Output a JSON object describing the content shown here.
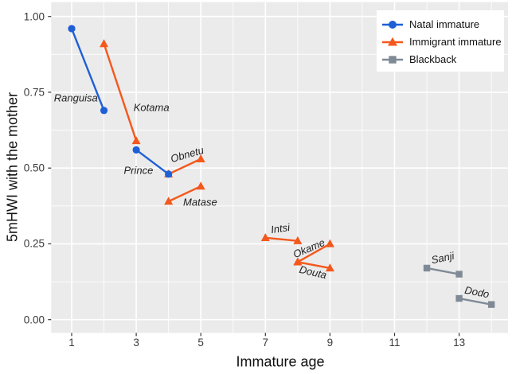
{
  "chart_data": {
    "type": "line",
    "title": "",
    "xlabel": "Immature age",
    "ylabel": "5mHWI with the mother",
    "xlim": [
      0.35,
      14.65
    ],
    "ylim": [
      -0.04,
      1.04
    ],
    "x_ticks": [
      1,
      3,
      5,
      7,
      9,
      11,
      13
    ],
    "x_tick_labels": [
      "1",
      "3",
      "5",
      "7",
      "9",
      "11",
      "13"
    ],
    "y_ticks": [
      0.0,
      0.25,
      0.5,
      0.75,
      1.0
    ],
    "y_tick_labels": [
      "0.00",
      "0.25",
      "0.50",
      "0.75",
      "1.00"
    ],
    "x_minor": [
      2,
      4,
      6,
      8,
      10,
      12,
      14
    ],
    "y_minor": [
      0.125,
      0.375,
      0.625,
      0.875
    ],
    "grid": "on",
    "panel_background": "#EBEBEB",
    "grid_color": "#FFFFFF",
    "tick_color": "#333333",
    "groups": [
      {
        "name": "Natal immature",
        "color": "#1F5FD6",
        "marker": "circle"
      },
      {
        "name": "Immigrant immature",
        "color": "#F4581C",
        "marker": "triangle"
      },
      {
        "name": "Blackback",
        "color": "#7F8A96",
        "marker": "square"
      }
    ],
    "legend": {
      "position": "top-right",
      "background": "#FFFFFF"
    },
    "series": [
      {
        "name": "Kotama",
        "group": "Immigrant immature",
        "marker": "triangle",
        "color": "#F4581C",
        "x": [
          2,
          3
        ],
        "y": [
          0.91,
          0.59
        ],
        "label": {
          "x": 3.47,
          "y": 0.7,
          "rotate": 0
        }
      },
      {
        "name": "Obnetu",
        "group": "Immigrant immature",
        "marker": "triangle",
        "color": "#F4581C",
        "x": [
          4,
          5
        ],
        "y": [
          0.48,
          0.53
        ],
        "label": {
          "x": 4.58,
          "y": 0.545,
          "rotate": -16
        }
      },
      {
        "name": "Matase",
        "group": "Immigrant immature",
        "marker": "triangle",
        "color": "#F4581C",
        "x": [
          4,
          5
        ],
        "y": [
          0.39,
          0.44
        ],
        "label": {
          "x": 4.98,
          "y": 0.388,
          "rotate": 0
        }
      },
      {
        "name": "Intsi",
        "group": "Immigrant immature",
        "marker": "triangle",
        "color": "#F4581C",
        "x": [
          7,
          8
        ],
        "y": [
          0.27,
          0.26
        ],
        "label": {
          "x": 7.46,
          "y": 0.302,
          "rotate": -8
        }
      },
      {
        "name": "Okame",
        "group": "Immigrant immature",
        "marker": "triangle",
        "color": "#F4581C",
        "x": [
          8,
          9
        ],
        "y": [
          0.19,
          0.25
        ],
        "label": {
          "x": 8.35,
          "y": 0.236,
          "rotate": -23
        }
      },
      {
        "name": "Douta",
        "group": "Immigrant immature",
        "marker": "triangle",
        "color": "#F4581C",
        "x": [
          8,
          9
        ],
        "y": [
          0.19,
          0.17
        ],
        "label": {
          "x": 8.48,
          "y": 0.157,
          "rotate": 13
        }
      },
      {
        "name": "Ranguisa",
        "group": "Natal immature",
        "marker": "circle",
        "color": "#1F5FD6",
        "x": [
          1,
          2
        ],
        "y": [
          0.96,
          0.69
        ],
        "label": {
          "x": 1.13,
          "y": 0.732,
          "rotate": 0
        }
      },
      {
        "name": "Prince",
        "group": "Natal immature",
        "marker": "circle",
        "color": "#1F5FD6",
        "x": [
          3,
          4
        ],
        "y": [
          0.56,
          0.48
        ],
        "label": {
          "x": 3.07,
          "y": 0.493,
          "rotate": 0
        }
      },
      {
        "name": "Sanji",
        "group": "Blackback",
        "marker": "square",
        "color": "#7F8A96",
        "x": [
          12,
          13
        ],
        "y": [
          0.17,
          0.15
        ],
        "label": {
          "x": 12.48,
          "y": 0.203,
          "rotate": -12
        }
      },
      {
        "name": "Dodo",
        "group": "Blackback",
        "marker": "square",
        "color": "#7F8A96",
        "x": [
          13,
          14
        ],
        "y": [
          0.07,
          0.05
        ],
        "label": {
          "x": 13.56,
          "y": 0.092,
          "rotate": 11
        }
      }
    ]
  }
}
